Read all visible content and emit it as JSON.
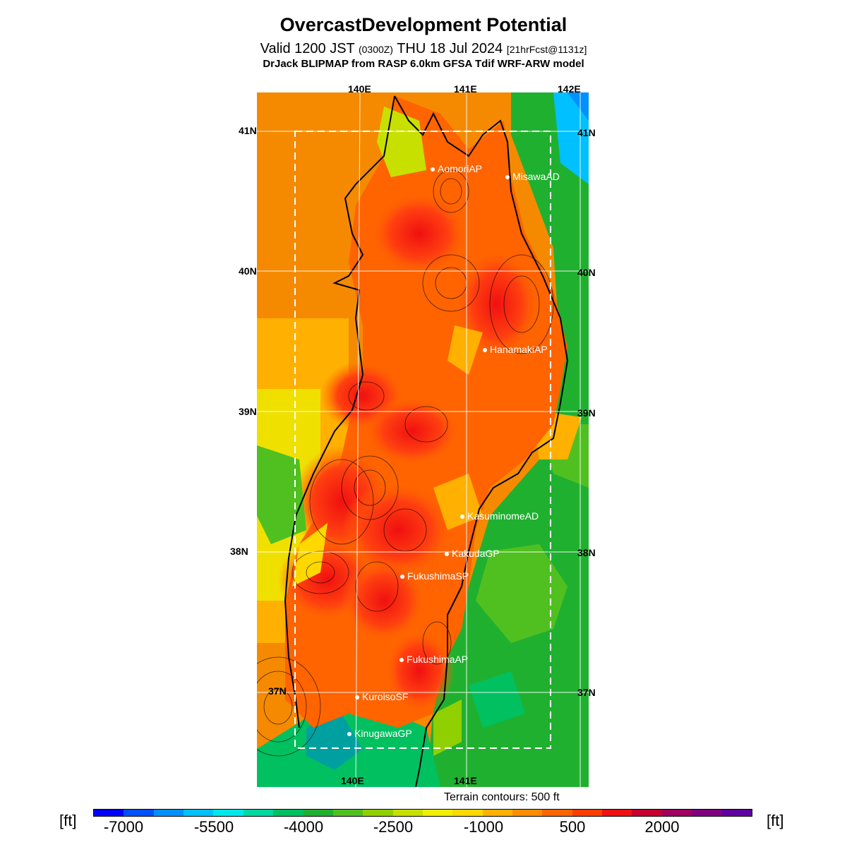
{
  "header": {
    "title": "OvercastDevelopment Potential",
    "valid_main": "Valid 1200 JST",
    "valid_utc": "(0300Z)",
    "valid_date": "THU 18 Jul 2024",
    "valid_fcst": "[21hrFcst@1131z]",
    "model": "DrJack BLIPMAP from RASP 6.0km GFSA Tdif WRF-ARW model"
  },
  "map": {
    "lon_labels_top": [
      "140E",
      "141E",
      "142E"
    ],
    "lon_labels_bottom": [
      "140E",
      "141E"
    ],
    "lat_labels_left": [
      "41N",
      "40N",
      "39N",
      "38N",
      "37N"
    ],
    "lat_labels_right": [
      "41N",
      "40N",
      "39N",
      "38N",
      "37N"
    ],
    "sites": [
      {
        "name": "AomoriAP"
      },
      {
        "name": "MisawaAD"
      },
      {
        "name": "HanamakiAP"
      },
      {
        "name": "KasuminomeAD"
      },
      {
        "name": "KakudaGP"
      },
      {
        "name": "FukushimaSP"
      },
      {
        "name": "FukushimaAP"
      },
      {
        "name": "KuroisoSF"
      },
      {
        "name": "KinugawaGP"
      }
    ],
    "terrain_note": "Terrain contours: 500 ft"
  },
  "colorbar": {
    "unit_left": "[ft]",
    "unit_right": "[ft]",
    "ticks": [
      "-7000",
      "-5500",
      "-4000",
      "-2500",
      "-1000",
      "500",
      "2000"
    ],
    "colors": [
      "#0000ff",
      "#0050ff",
      "#0090ff",
      "#00c0ff",
      "#00e8e8",
      "#00d8a0",
      "#00c060",
      "#20b030",
      "#50c020",
      "#90d000",
      "#c8e000",
      "#f0f000",
      "#ffd800",
      "#ffb000",
      "#ff8c00",
      "#ff6400",
      "#ff3c00",
      "#f01010",
      "#c80030",
      "#a00060",
      "#800080",
      "#6000a0"
    ]
  }
}
